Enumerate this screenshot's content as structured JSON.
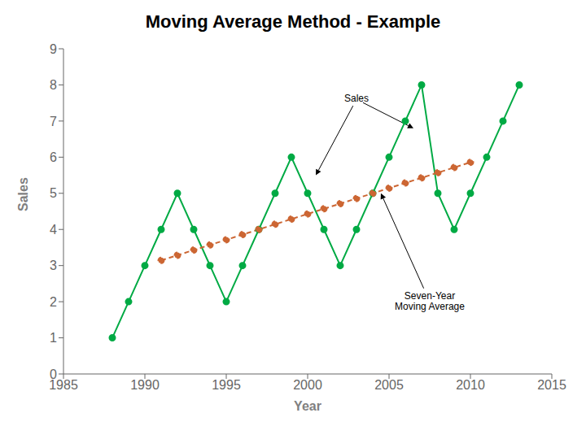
{
  "chart_data": {
    "type": "line",
    "title": "Moving Average Method - Example",
    "x_label": "Year",
    "y_label": "Sales",
    "xlim": [
      1985,
      2015
    ],
    "xticks": [
      1985,
      1990,
      1995,
      2000,
      2005,
      2010,
      2015
    ],
    "ylim": [
      0,
      9
    ],
    "yticks": [
      0,
      1,
      2,
      3,
      4,
      5,
      6,
      7,
      8,
      9
    ],
    "grid": false,
    "series": [
      {
        "color": "#00aa44",
        "line_style": "solid",
        "marker": "circle",
        "x": [
          1988,
          1989,
          1990,
          1991,
          1992,
          1993,
          1994,
          1995,
          1996,
          1997,
          1998,
          1999,
          2000,
          2001,
          2002,
          2003,
          2004,
          2005,
          2006,
          2007,
          2008,
          2009,
          2010,
          2011,
          2012,
          2013
        ],
        "values": [
          1,
          2,
          3,
          4,
          5,
          4,
          3,
          2,
          3,
          4,
          5,
          6,
          5,
          4,
          3,
          4,
          5,
          6,
          7,
          8,
          5,
          4,
          5,
          6,
          7,
          8
        ]
      },
      {
        "color": "#cc6633",
        "line_style": "dashed",
        "marker": "circle",
        "x": [
          1991,
          1992,
          1993,
          1994,
          1995,
          1996,
          1997,
          1998,
          1999,
          2000,
          2001,
          2002,
          2003,
          2004,
          2005,
          2006,
          2007,
          2008,
          2009,
          2010
        ],
        "values": [
          3.143,
          3.286,
          3.429,
          3.571,
          3.714,
          3.857,
          4.0,
          4.143,
          4.286,
          4.429,
          4.571,
          4.714,
          4.857,
          5.0,
          5.143,
          5.286,
          5.429,
          5.571,
          5.714,
          5.857
        ]
      }
    ],
    "annotations": [
      {
        "text": "Sales",
        "x": 2003,
        "y": 7.6,
        "arrows": [
          {
            "x": 2000.5,
            "y": 5.5
          },
          {
            "x": 2006.5,
            "y": 6.8
          }
        ]
      },
      {
        "text": "Seven-Year\nMoving Average",
        "x": 2007.5,
        "y": 2.0,
        "arrows": [
          {
            "x": 2004.5,
            "y": 5.0
          }
        ]
      }
    ]
  }
}
